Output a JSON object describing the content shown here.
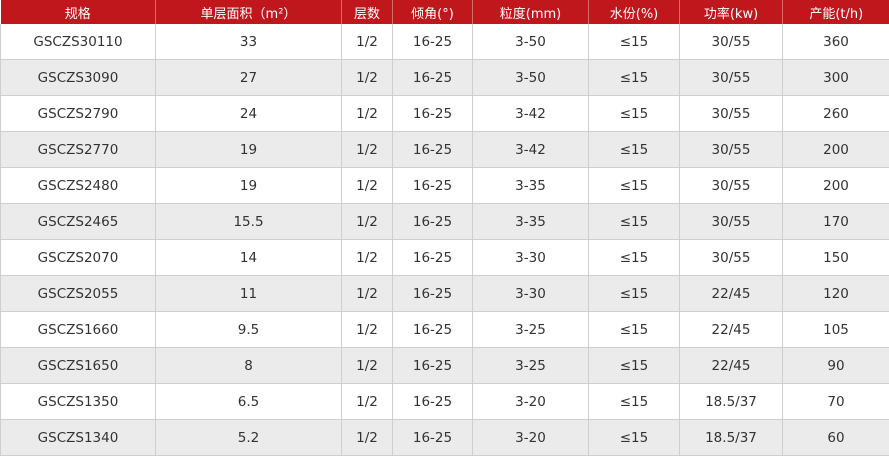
{
  "colors": {
    "header_bg": "#c0171d",
    "alt_row_bg": "#ebebeb"
  },
  "headers": [
    "规格",
    "单层面积（m²）",
    "层数",
    "倾角(°)",
    "粒度(mm)",
    "水份(%)",
    "功率(kw)",
    "产能(t/h)"
  ],
  "rows": [
    [
      "GSCZS30110",
      "33",
      "1/2",
      "16-25",
      "3-50",
      "≤15",
      "30/55",
      "360"
    ],
    [
      "GSCZS3090",
      "27",
      "1/2",
      "16-25",
      "3-50",
      "≤15",
      "30/55",
      "300"
    ],
    [
      "GSCZS2790",
      "24",
      "1/2",
      "16-25",
      "3-42",
      "≤15",
      "30/55",
      "260"
    ],
    [
      "GSCZS2770",
      "19",
      "1/2",
      "16-25",
      "3-42",
      "≤15",
      "30/55",
      "200"
    ],
    [
      "GSCZS2480",
      "19",
      "1/2",
      "16-25",
      "3-35",
      "≤15",
      "30/55",
      "200"
    ],
    [
      "GSCZS2465",
      "15.5",
      "1/2",
      "16-25",
      "3-35",
      "≤15",
      "30/55",
      "170"
    ],
    [
      "GSCZS2070",
      "14",
      "1/2",
      "16-25",
      "3-30",
      "≤15",
      "30/55",
      "150"
    ],
    [
      "GSCZS2055",
      "11",
      "1/2",
      "16-25",
      "3-30",
      "≤15",
      "22/45",
      "120"
    ],
    [
      "GSCZS1660",
      "9.5",
      "1/2",
      "16-25",
      "3-25",
      "≤15",
      "22/45",
      "105"
    ],
    [
      "GSCZS1650",
      "8",
      "1/2",
      "16-25",
      "3-25",
      "≤15",
      "22/45",
      "90"
    ],
    [
      "GSCZS1350",
      "6.5",
      "1/2",
      "16-25",
      "3-20",
      "≤15",
      "18.5/37",
      "70"
    ],
    [
      "GSCZS1340",
      "5.2",
      "1/2",
      "16-25",
      "3-20",
      "≤15",
      "18.5/37",
      "60"
    ]
  ]
}
